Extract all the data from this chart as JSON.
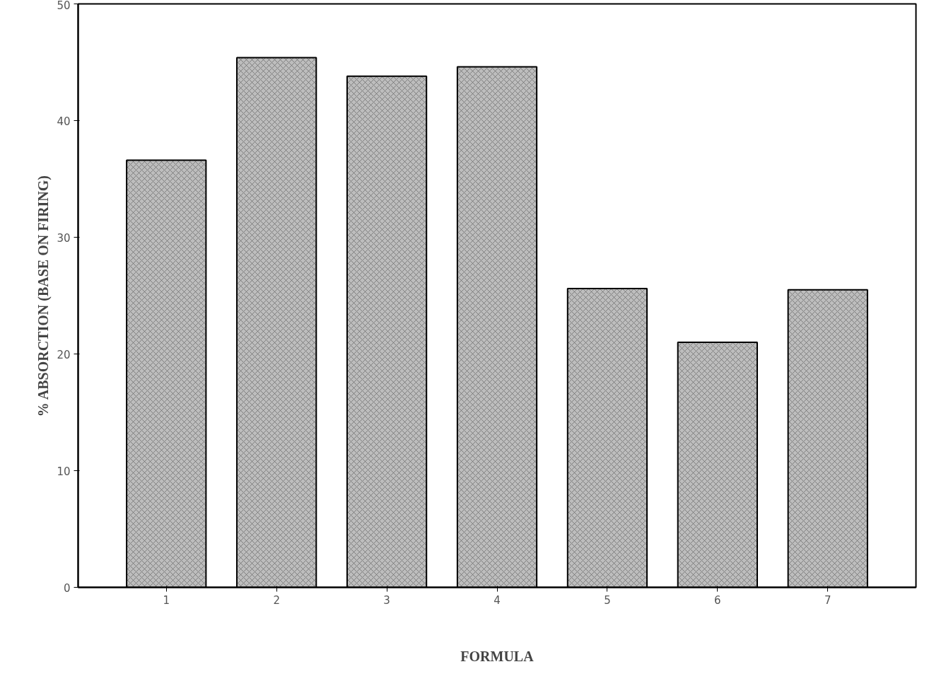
{
  "chart_data": {
    "type": "bar",
    "xlabel": "FORMULA",
    "ylabel": "% ABSORCTION (BASE ON FIRING)",
    "categories": [
      "1",
      "2",
      "3",
      "4",
      "5",
      "6",
      "7"
    ],
    "values": [
      36.6,
      45.4,
      43.8,
      44.6,
      25.6,
      21.0,
      25.5
    ],
    "color": "#bdbdbd",
    "ylim": [
      0,
      50
    ],
    "yticks": [
      0,
      10,
      20,
      30,
      40,
      50
    ],
    "grid": false
  }
}
